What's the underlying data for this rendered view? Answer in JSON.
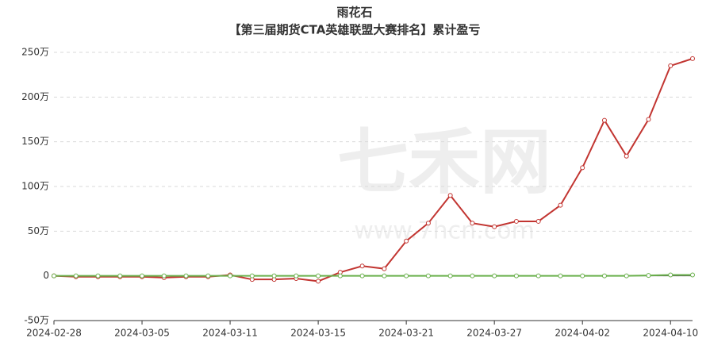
{
  "chart_data": {
    "type": "line",
    "title": "雨花石",
    "subtitle": "【第三届期货CTA英雄联盟大赛排名】累计盈亏",
    "watermark": "七禾网",
    "watermark_url": "www.7hcn.com",
    "categories": [
      "2024-02-28",
      null,
      null,
      null,
      "2024-03-05",
      null,
      null,
      null,
      "2024-03-11",
      null,
      null,
      null,
      "2024-03-15",
      null,
      null,
      null,
      "2024-03-21",
      null,
      null,
      null,
      "2024-03-27",
      null,
      null,
      null,
      "2024-04-02",
      null,
      null,
      null,
      "2024-04-10",
      null
    ],
    "series": [
      {
        "color": "#c23531",
        "values": [
          0,
          -1,
          -1,
          -1,
          -1,
          -2,
          -1,
          -1,
          1,
          -4,
          -4,
          -3,
          -6,
          4,
          11,
          8,
          39,
          59,
          90,
          59,
          55,
          61,
          61,
          79,
          121,
          174,
          134,
          175,
          235,
          243
        ]
      },
      {
        "color": "#6ab04c",
        "values": [
          0,
          0,
          0,
          0,
          0,
          0,
          0,
          0,
          0,
          0,
          0,
          0,
          0,
          0,
          0,
          0,
          0,
          0,
          0,
          0,
          0,
          0,
          0,
          0,
          0,
          0,
          0,
          0.5,
          1,
          1
        ]
      }
    ],
    "ylim": [
      -50,
      250
    ],
    "yticks": [
      {
        "value": -50,
        "label": "-50万"
      },
      0,
      {
        "value": 50,
        "label": "50万"
      },
      {
        "value": 100,
        "label": "100万"
      },
      {
        "value": 150,
        "label": "150万"
      },
      {
        "value": 200,
        "label": "200万"
      },
      {
        "value": 250,
        "label": "250万"
      }
    ],
    "grid": true
  }
}
